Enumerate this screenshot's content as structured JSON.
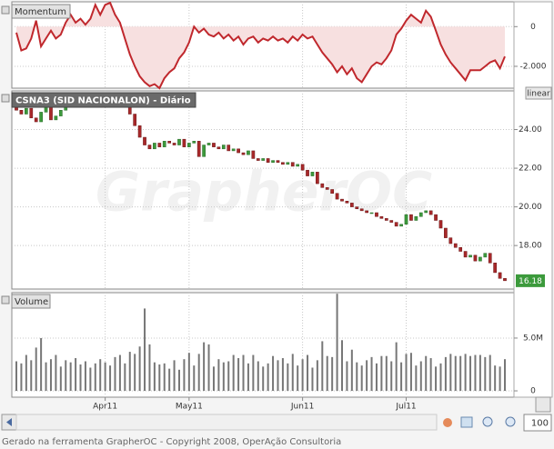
{
  "chart_data": [
    {
      "type": "line",
      "title": "Momentum",
      "color": "#c0282d",
      "fill": "#f7e0e0",
      "values": [
        -0.3,
        -1.2,
        -1.1,
        -0.6,
        0.3,
        -1.0,
        -0.6,
        -0.2,
        -0.6,
        -0.4,
        0.2,
        0.6,
        0.2,
        0.4,
        0.1,
        0.4,
        1.1,
        0.6,
        1.1,
        1.2,
        0.6,
        0.2,
        -0.6,
        -1.4,
        -2.0,
        -2.5,
        -2.8,
        -3.0,
        -2.9,
        -3.1,
        -2.6,
        -2.3,
        -2.1,
        -1.6,
        -1.3,
        -0.8,
        0.0,
        -0.3,
        -0.1,
        -0.4,
        -0.5,
        -0.3,
        -0.6,
        -0.4,
        -0.7,
        -0.5,
        -0.9,
        -0.6,
        -0.5,
        -0.8,
        -0.6,
        -0.7,
        -0.5,
        -0.7,
        -0.6,
        -0.8,
        -0.5,
        -0.7,
        -0.4,
        -0.6,
        -0.5,
        -0.9,
        -1.3,
        -1.6,
        -1.9,
        -2.3,
        -2.0,
        -2.4,
        -2.1,
        -2.6,
        -2.8,
        -2.4,
        -2.0,
        -1.8,
        -1.9,
        -1.6,
        -1.2,
        -0.4,
        -0.1,
        0.3,
        0.6,
        0.4,
        0.2,
        0.8,
        0.5,
        -0.2,
        -0.9,
        -1.4,
        -1.8,
        -2.1,
        -2.4,
        -2.7,
        -2.2,
        -2.2,
        -2.2,
        -2.0,
        -1.8,
        -1.7,
        -2.1,
        -1.5
      ],
      "ylim": [
        -3.1,
        1.25
      ],
      "yticks": [
        0,
        {
          "value": -2,
          "label": "-2.000"
        }
      ],
      "grid": true
    },
    {
      "type": "candlestick",
      "title": "CSNA3 (SID NACIONALON) - Diário",
      "scale": "linear",
      "up_color": "#3c9a3c",
      "down_color": "#a8282a",
      "open": [
        25.2,
        25.0,
        24.8,
        25.1,
        24.6,
        24.4,
        24.9,
        25.2,
        24.5,
        24.7,
        25.0,
        25.2,
        25.4,
        25.3,
        25.5,
        25.6,
        25.4,
        25.5,
        25.7,
        25.6,
        25.5,
        25.6,
        25.4,
        25.3,
        24.8,
        24.2,
        23.6,
        23.2,
        23.0,
        23.3,
        23.1,
        23.4,
        23.3,
        23.2,
        23.5,
        23.1,
        23.3,
        23.4,
        22.6,
        23.2,
        23.3,
        23.1,
        23.0,
        23.2,
        22.9,
        23.0,
        22.8,
        22.7,
        22.9,
        22.5,
        22.4,
        22.5,
        22.3,
        22.4,
        22.3,
        22.2,
        22.3,
        22.1,
        22.2,
        21.9,
        21.6,
        21.8,
        21.2,
        21.0,
        20.9,
        20.7,
        20.4,
        20.3,
        20.2,
        20.0,
        19.9,
        19.8,
        19.7,
        19.7,
        19.5,
        19.4,
        19.3,
        19.2,
        19.0,
        19.1,
        19.6,
        19.3,
        19.5,
        19.7,
        19.8,
        19.6,
        19.3,
        18.9,
        18.4,
        18.1,
        17.9,
        17.7,
        17.4,
        17.5,
        17.2,
        17.4,
        17.6,
        17.1,
        16.6,
        16.3
      ],
      "close": [
        25.0,
        24.8,
        25.1,
        24.6,
        24.4,
        24.9,
        25.2,
        24.5,
        24.7,
        25.0,
        25.2,
        25.4,
        25.3,
        25.5,
        25.6,
        25.4,
        25.5,
        25.7,
        25.6,
        25.5,
        25.6,
        25.4,
        25.3,
        24.8,
        24.2,
        23.6,
        23.2,
        23.0,
        23.3,
        23.1,
        23.4,
        23.3,
        23.2,
        23.5,
        23.1,
        23.3,
        23.4,
        22.6,
        23.2,
        23.3,
        23.1,
        23.0,
        23.2,
        22.9,
        23.0,
        22.8,
        22.7,
        22.9,
        22.5,
        22.4,
        22.5,
        22.3,
        22.4,
        22.3,
        22.2,
        22.3,
        22.1,
        22.2,
        21.9,
        21.6,
        21.8,
        21.2,
        21.0,
        20.9,
        20.7,
        20.4,
        20.3,
        20.2,
        20.0,
        19.9,
        19.8,
        19.7,
        19.7,
        19.5,
        19.4,
        19.3,
        19.2,
        19.0,
        19.1,
        19.6,
        19.3,
        19.5,
        19.7,
        19.8,
        19.6,
        19.3,
        18.9,
        18.4,
        18.1,
        17.9,
        17.7,
        17.4,
        17.5,
        17.2,
        17.4,
        17.6,
        17.1,
        16.6,
        16.3,
        16.18
      ],
      "ylim": [
        15.75,
        26.0
      ],
      "yticks": [
        {
          "value": 18,
          "label": "18.00"
        },
        {
          "value": 20,
          "label": "20.00"
        },
        {
          "value": 22,
          "label": "22.00"
        },
        {
          "value": 24,
          "label": "24.00"
        }
      ],
      "grid": true
    },
    {
      "type": "bar",
      "title": "Volume",
      "color": "#777777",
      "categories": [
        null,
        null,
        null,
        null,
        null,
        null,
        null,
        null,
        null,
        null,
        null,
        null,
        null,
        null,
        null,
        null,
        null,
        null,
        "Apr11",
        null,
        null,
        null,
        null,
        null,
        null,
        null,
        null,
        null,
        null,
        null,
        null,
        null,
        null,
        null,
        null,
        "May11",
        null,
        null,
        null,
        null,
        null,
        null,
        null,
        null,
        null,
        null,
        null,
        null,
        null,
        null,
        null,
        null,
        null,
        null,
        null,
        null,
        null,
        null,
        "Jun11",
        null,
        null,
        null,
        null,
        null,
        null,
        null,
        null,
        null,
        null,
        null,
        null,
        null,
        null,
        null,
        null,
        null,
        null,
        null,
        null,
        "Jul11",
        null,
        null,
        null,
        null,
        null,
        null,
        null,
        null,
        null,
        null,
        null,
        null,
        null,
        null,
        null,
        null,
        null,
        null,
        null,
        null
      ],
      "values": [
        2800000.0,
        2600000.0,
        3400000.0,
        2900000.0,
        4100000.0,
        5000000.0,
        2700000.0,
        3000000.0,
        3400000.0,
        2300000.0,
        2900000.0,
        2700000.0,
        3100000.0,
        2500000.0,
        2800000.0,
        2200000.0,
        2600000.0,
        3000000.0,
        2700000.0,
        2400000.0,
        3200000.0,
        3400000.0,
        2600000.0,
        3700000.0,
        3500000.0,
        4200000.0,
        7800000.0,
        4400000.0,
        2700000.0,
        2500000.0,
        2600000.0,
        2100000.0,
        2900000.0,
        2000000.0,
        3000000.0,
        3600000.0,
        2400000.0,
        3500000.0,
        4600000.0,
        4400000.0,
        2300000.0,
        3000000.0,
        2700000.0,
        2800000.0,
        3400000.0,
        3100000.0,
        3400000.0,
        2600000.0,
        3400000.0,
        2800000.0,
        2300000.0,
        2600000.0,
        3300000.0,
        2900000.0,
        3100000.0,
        2600000.0,
        3500000.0,
        2400000.0,
        3000000.0,
        3400000.0,
        2200000.0,
        2900000.0,
        4700000.0,
        3300000.0,
        3200000.0,
        9200000.0,
        4800000.0,
        2800000.0,
        3900000.0,
        2700000.0,
        2400000.0,
        2900000.0,
        3200000.0,
        2600000.0,
        3300000.0,
        3300000.0,
        2800000.0,
        4600000.0,
        2700000.0,
        3500000.0,
        3600000.0,
        2400000.0,
        2800000.0,
        3300000.0,
        3100000.0,
        2300000.0,
        2600000.0,
        3200000.0,
        3500000.0,
        3300000.0,
        3300000.0,
        3500000.0,
        3300000.0,
        3400000.0,
        3400000.0,
        3200000.0,
        3400000.0,
        2400000.0,
        2300000.0,
        3000000.0
      ],
      "ylim": [
        -600000,
        9300000
      ],
      "yticks": [
        0,
        {
          "value": 5000000,
          "label": "5.0M"
        }
      ],
      "grid": true
    }
  ],
  "ui": {
    "watermark": "GrapherOC",
    "zoom": "100",
    "footer": "Gerado na ferramenta GrapherOC - Copyright 2008, OperAção Consultoria"
  }
}
